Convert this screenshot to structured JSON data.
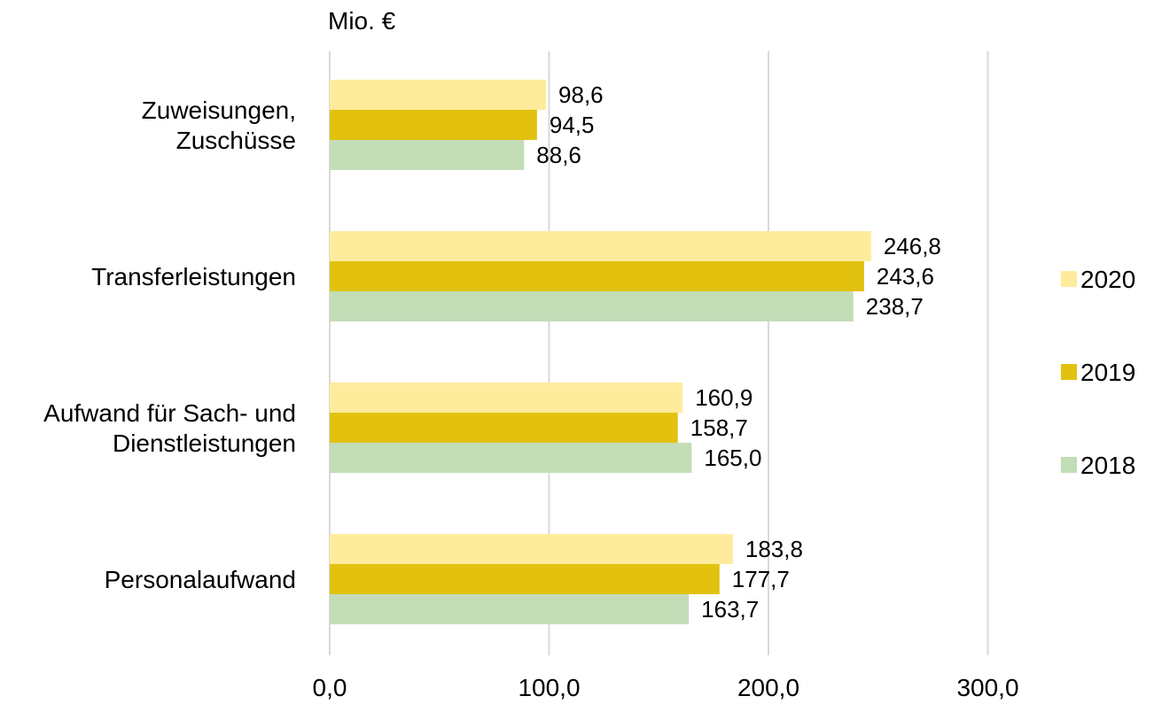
{
  "chart_data": {
    "type": "bar",
    "orientation": "horizontal",
    "title": "",
    "unit_label": "Mio. €",
    "categories": [
      [
        "Zuweisungen,",
        "Zuschüsse"
      ],
      [
        "Transferleistungen"
      ],
      [
        "Aufwand für Sach- und",
        "Dienstleistungen"
      ],
      [
        "Personalaufwand"
      ]
    ],
    "series": [
      {
        "name": "2020",
        "color": "#FFEB9C",
        "values": [
          98.6,
          246.8,
          160.9,
          183.8
        ],
        "labels": [
          "98,6",
          "246,8",
          "160,9",
          "183,8"
        ]
      },
      {
        "name": "2019",
        "color": "#E2C20F",
        "values": [
          94.5,
          243.6,
          158.7,
          177.7
        ],
        "labels": [
          "94,5",
          "243,6",
          "158,7",
          "177,7"
        ]
      },
      {
        "name": "2018",
        "color": "#C3DDB7",
        "values": [
          88.6,
          238.7,
          165.0,
          163.7
        ],
        "labels": [
          "88,6",
          "238,7",
          "165,0",
          "163,7"
        ]
      }
    ],
    "xlim": [
      0,
      300
    ],
    "xticks": [
      0,
      100,
      200,
      300
    ],
    "xtick_labels": [
      "0,0",
      "100,0",
      "200,0",
      "300,0"
    ],
    "grid": true,
    "legend_position": "right",
    "gridline_color": "#D9D9D9"
  }
}
